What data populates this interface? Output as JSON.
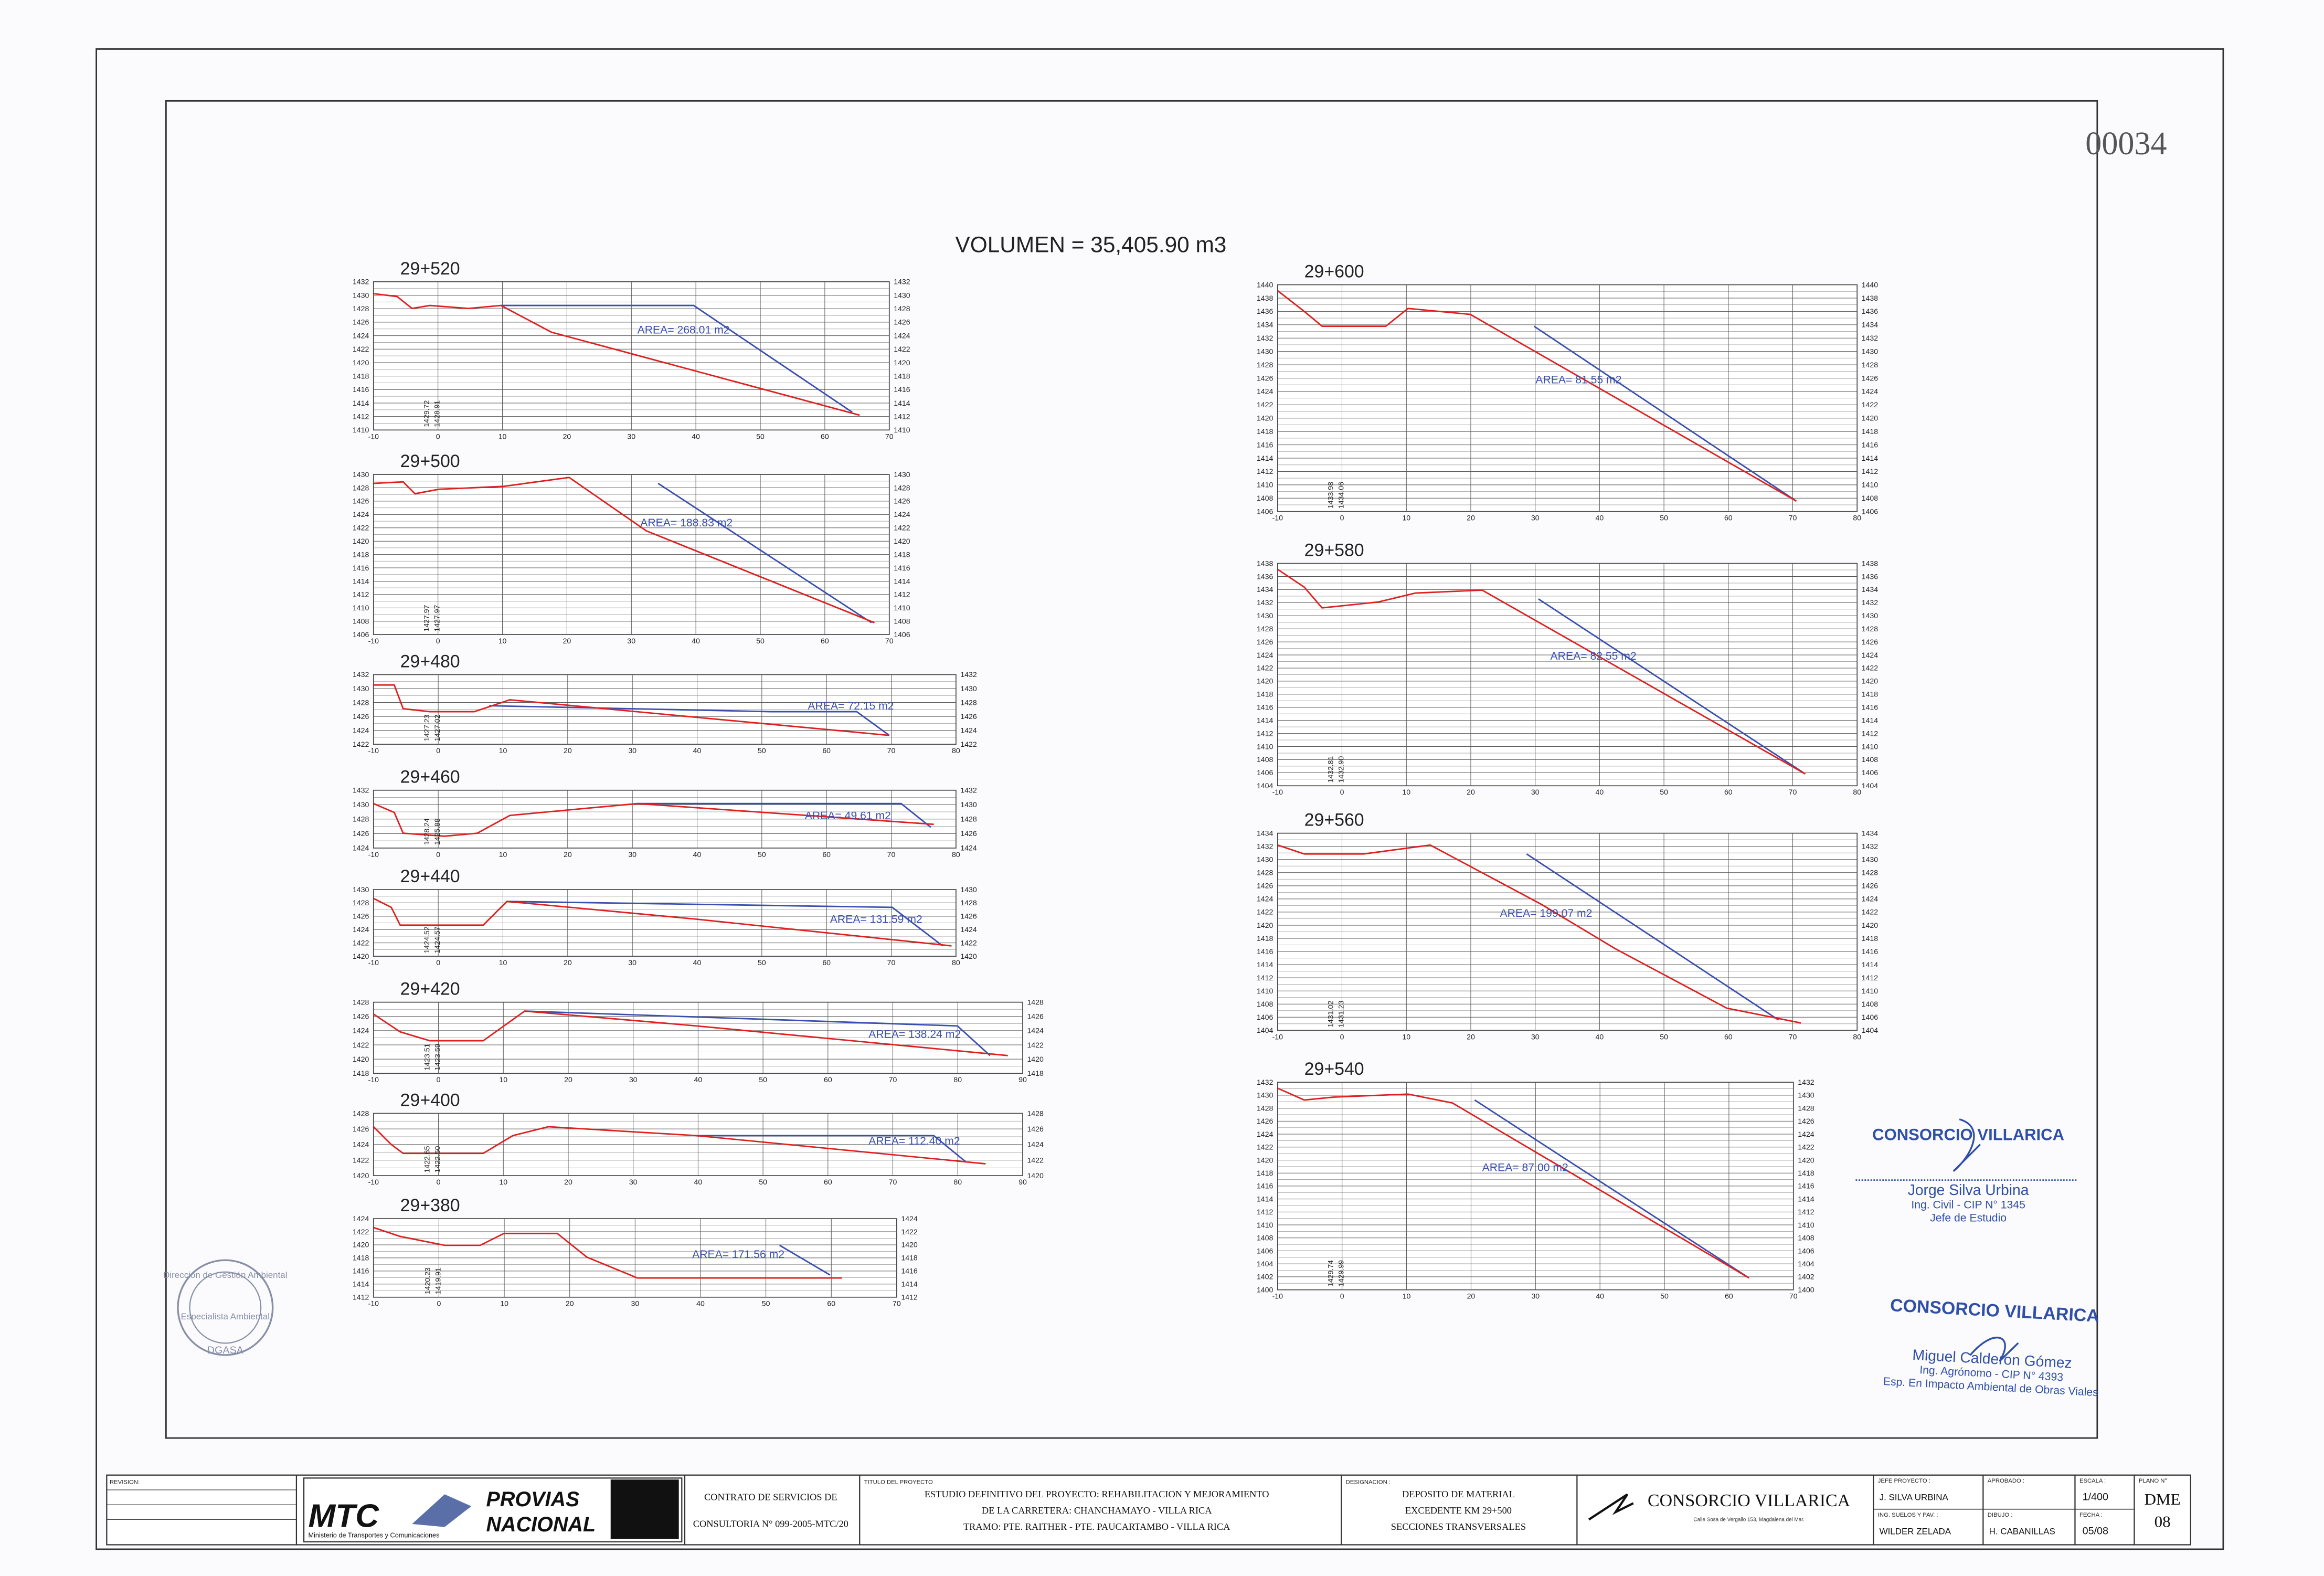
{
  "page_number": "00034",
  "volume": "VOLUMEN = 35,405.90 m3",
  "sections": [
    {
      "station": "29+520",
      "area": "AREA= 268.01 m2",
      "elevations": [
        "1429.72",
        "1428.91"
      ],
      "yticks": [
        1410,
        1412,
        1414,
        1416,
        1418,
        1420,
        1422,
        1424,
        1426,
        1428,
        1430,
        1432
      ],
      "xticks": [
        -10,
        0,
        10,
        20,
        30,
        40,
        50,
        60,
        70
      ]
    },
    {
      "station": "29+500",
      "area": "AREA= 188.83 m2",
      "elevations": [
        "1427.97",
        "1427.97"
      ],
      "yticks": [
        1406,
        1408,
        1410,
        1412,
        1414,
        1416,
        1418,
        1420,
        1422,
        1424,
        1426,
        1428,
        1430
      ],
      "xticks": [
        -10,
        0,
        10,
        20,
        30,
        40,
        50,
        60,
        70
      ]
    },
    {
      "station": "29+480",
      "area": "AREA= 72.15 m2",
      "elevations": [
        "1427.23",
        "1427.02"
      ],
      "yticks": [
        1422,
        1424,
        1426,
        1428,
        1430,
        1432
      ],
      "xticks": [
        -10,
        0,
        10,
        20,
        30,
        40,
        50,
        60,
        70,
        80
      ]
    },
    {
      "station": "29+460",
      "area": "AREA= 49.61 m2",
      "elevations": [
        "1428.24",
        "1425.88"
      ],
      "yticks": [
        1424,
        1426,
        1428,
        1430,
        1432
      ],
      "xticks": [
        -10,
        0,
        10,
        20,
        30,
        40,
        50,
        60,
        70,
        80
      ]
    },
    {
      "station": "29+440",
      "area": "AREA= 131.59 m2",
      "elevations": [
        "1424.52",
        "1424.57"
      ],
      "yticks": [
        1420,
        1422,
        1424,
        1426,
        1428,
        1430
      ],
      "xticks": [
        -10,
        0,
        10,
        20,
        30,
        40,
        50,
        60,
        70,
        80
      ]
    },
    {
      "station": "29+420",
      "area": "AREA= 138.24 m2",
      "elevations": [
        "1423.51",
        "1423.59"
      ],
      "yticks": [
        1418,
        1420,
        1422,
        1424,
        1426,
        1428
      ],
      "xticks": [
        -10,
        0,
        10,
        20,
        30,
        40,
        50,
        60,
        70,
        80,
        90
      ]
    },
    {
      "station": "29+400",
      "area": "AREA= 112.40 m2",
      "elevations": [
        "1422.65",
        "1422.50"
      ],
      "yticks": [
        1420,
        1422,
        1424,
        1426,
        1428
      ],
      "xticks": [
        -10,
        0,
        10,
        20,
        30,
        40,
        50,
        60,
        70,
        80,
        90
      ]
    },
    {
      "station": "29+380",
      "area": "AREA= 171.56 m2",
      "elevations": [
        "1420.23",
        "1419.91"
      ],
      "yticks": [
        1412,
        1414,
        1416,
        1418,
        1420,
        1422,
        1424
      ],
      "xticks": [
        -10,
        0,
        10,
        20,
        30,
        40,
        50,
        60,
        70
      ]
    },
    {
      "station": "29+600",
      "area": "AREA= 81.55 m2",
      "elevations": [
        "1433.98",
        "1434.06"
      ],
      "yticks": [
        1406,
        1408,
        1410,
        1412,
        1414,
        1416,
        1418,
        1420,
        1422,
        1424,
        1426,
        1428,
        1430,
        1432,
        1434,
        1436,
        1438,
        1440
      ],
      "xticks": [
        -10,
        0,
        10,
        20,
        30,
        40,
        50,
        60,
        70,
        80
      ]
    },
    {
      "station": "29+580",
      "area": "AREA= 82.55 m2",
      "elevations": [
        "1432.81",
        "1432.90"
      ],
      "yticks": [
        1404,
        1406,
        1408,
        1410,
        1412,
        1414,
        1416,
        1418,
        1420,
        1422,
        1424,
        1426,
        1428,
        1430,
        1432,
        1434,
        1436,
        1438
      ],
      "xticks": [
        -10,
        0,
        10,
        20,
        30,
        40,
        50,
        60,
        70,
        80
      ]
    },
    {
      "station": "29+560",
      "area": "AREA= 199.07 m2",
      "elevations": [
        "1431.02",
        "1431.23"
      ],
      "yticks": [
        1404,
        1406,
        1408,
        1410,
        1412,
        1414,
        1416,
        1418,
        1420,
        1422,
        1424,
        1426,
        1428,
        1430,
        1432,
        1434
      ],
      "xticks": [
        -10,
        0,
        10,
        20,
        30,
        40,
        50,
        60,
        70,
        80
      ]
    },
    {
      "station": "29+540",
      "area": "AREA= 87.00 m2",
      "elevations": [
        "1429.74",
        "1429.99"
      ],
      "yticks": [
        1400,
        1402,
        1404,
        1406,
        1408,
        1410,
        1412,
        1414,
        1416,
        1418,
        1420,
        1422,
        1424,
        1426,
        1428,
        1430,
        1432
      ],
      "xticks": [
        -10,
        0,
        10,
        20,
        30,
        40,
        50,
        60,
        70
      ]
    }
  ],
  "title_block": {
    "revision": "REVISION:",
    "mtc": "MTC",
    "ministry": "Ministerio de Transportes y Comunicaciones",
    "provias": [
      "PROVIAS",
      "NACIONAL"
    ],
    "contract": [
      "CONTRATO DE SERVICIOS DE",
      "CONSULTORIA N° 099-2005-MTC/20"
    ],
    "project_label": "TITULO DEL PROYECTO",
    "project": [
      "ESTUDIO DEFINITIVO DEL PROYECTO: REHABILITACION Y MEJORAMIENTO",
      "DE LA CARRETERA: CHANCHAMAYO - VILLA RICA",
      "TRAMO: PTE. RAITHER - PTE. PAUCARTAMBO - VILLA RICA"
    ],
    "designation_label": "DESIGNACION :",
    "designation": [
      "DEPOSITO DE MATERIAL",
      "EXCEDENTE KM 29+500",
      "SECCIONES TRANSVERSALES"
    ],
    "company": "CONSORCIO VILLARICA",
    "address": "Calle Sosa de Vergallo 153, Magdalena del Mar.",
    "chief_label": "JEFE PROYECTO :",
    "chief": "J. SILVA URBINA",
    "soils_label": "ING. SUELOS Y PAV. :",
    "soils": "WILDER ZELADA",
    "approved_label": "APROBADO :",
    "drawing_label": "DIBUJO :",
    "drawing": "H. CABANILLAS",
    "scale_label": "ESCALA :",
    "scale": "1/400",
    "date_label": "FECHA :",
    "date": "05/08",
    "plan_label": "PLANO N°",
    "plan": [
      "DME",
      "08"
    ]
  },
  "stamps": {
    "company1": "CONSORCIO VILLARICA",
    "name1": "Jorge Silva Urbina",
    "role1a": "Ing. Civil - CIP N° 1345",
    "role1b": "Jefe de Estudio",
    "company2": "CONSORCIO VILLARICA",
    "name2": "Miguel Calderon Gómez",
    "role2a": "Ing. Agrónomo - CIP N° 4393",
    "role2b": "Esp. En Impacto Ambiental de Obras Viales",
    "seal": [
      "Dirección de Gestión Ambiental",
      "Especialista Ambiental",
      "DGASA"
    ]
  }
}
